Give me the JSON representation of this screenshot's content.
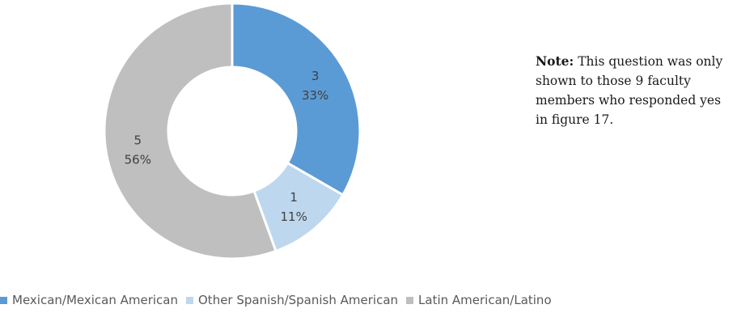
{
  "chart_data": {
    "type": "pie",
    "subtype": "donut",
    "categories": [
      "Mexican/Mexican American",
      "Other Spanish/Spanish American",
      "Latin American/Latino"
    ],
    "values": [
      3,
      1,
      5
    ],
    "percent_labels": [
      "33%",
      "11%",
      "56%"
    ],
    "colors": [
      "#5b9bd5",
      "#bdd7ee",
      "#bfbfbf"
    ],
    "legend_position": "bottom",
    "start_angle": "12 o'clock, clockwise"
  },
  "note": {
    "prefix": "Note:",
    "text": "This question was only shown to those 9 faculty members who responded yes in figure 17."
  }
}
